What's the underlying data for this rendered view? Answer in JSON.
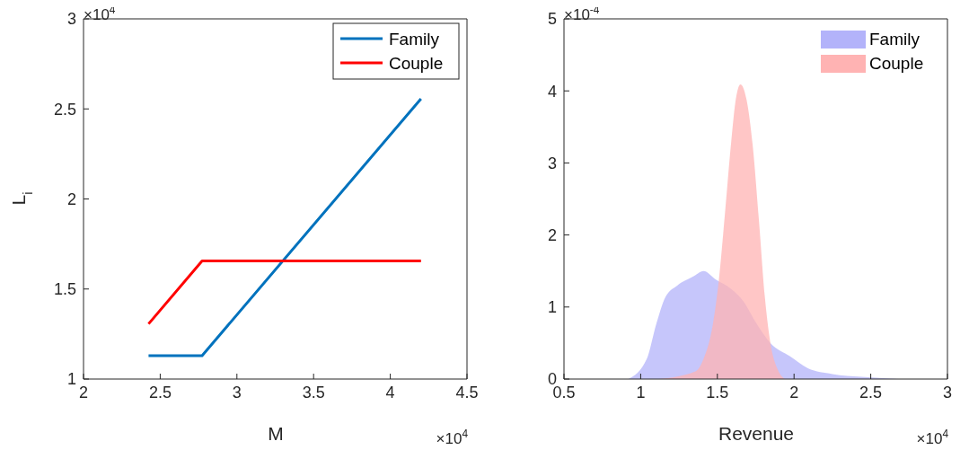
{
  "chart_data": [
    {
      "type": "line",
      "xlabel": "M",
      "ylabel": "L$_{i}$",
      "annotations": [
        "×10$^{4}$",
        "×10$^{4}$"
      ],
      "xlim": [
        2,
        4.5
      ],
      "xticks": [
        2,
        2.5,
        3,
        3.5,
        4,
        4.5
      ],
      "ylim": [
        1,
        3
      ],
      "yticks": [
        1,
        1.5,
        2,
        2.5,
        3
      ],
      "legend": "top right",
      "grid": false,
      "series": [
        {
          "name": "Family",
          "color": "#0072bd",
          "x": [
            2.424,
            2.773,
            4.2
          ],
          "values": [
            1.13,
            1.13,
            2.556
          ]
        },
        {
          "name": "Couple",
          "color": "#ff0000",
          "x": [
            2.424,
            2.773,
            4.2
          ],
          "values": [
            1.306,
            1.656,
            1.656
          ]
        }
      ]
    },
    {
      "type": "area",
      "xlabel": "Revenue",
      "annotations": [
        "×10$^{-4}$",
        "×10$^{4}$"
      ],
      "xlim": [
        0.5,
        3
      ],
      "xticks": [
        0.5,
        1,
        1.5,
        2,
        2.5,
        3
      ],
      "ylim": [
        0,
        5
      ],
      "yticks": [
        0,
        1,
        2,
        3,
        4,
        5
      ],
      "legend": "top right",
      "grid": false,
      "series": [
        {
          "name": "Family",
          "color": "#b3b3fa",
          "x": [
            0.92,
            1.04,
            1.1,
            1.16,
            1.24,
            1.34,
            1.41,
            1.49,
            1.59,
            1.67,
            1.75,
            1.85,
            1.97,
            2.09,
            2.25,
            2.44,
            2.68
          ],
          "values": [
            0,
            0.28,
            0.75,
            1.13,
            1.3,
            1.42,
            1.5,
            1.38,
            1.25,
            1.08,
            0.79,
            0.49,
            0.32,
            0.15,
            0.07,
            0.03,
            0
          ]
        },
        {
          "name": "Couple",
          "color": "#ffb3b3",
          "x": [
            1.12,
            1.36,
            1.41,
            1.47,
            1.51,
            1.55,
            1.59,
            1.62,
            1.65,
            1.69,
            1.73,
            1.77,
            1.81,
            1.85,
            1.89,
            1.94
          ],
          "values": [
            0,
            0.11,
            0.28,
            0.75,
            1.38,
            2.31,
            3.29,
            3.88,
            4.09,
            3.88,
            3.25,
            2.23,
            1.13,
            0.45,
            0.15,
            0
          ]
        }
      ]
    }
  ]
}
